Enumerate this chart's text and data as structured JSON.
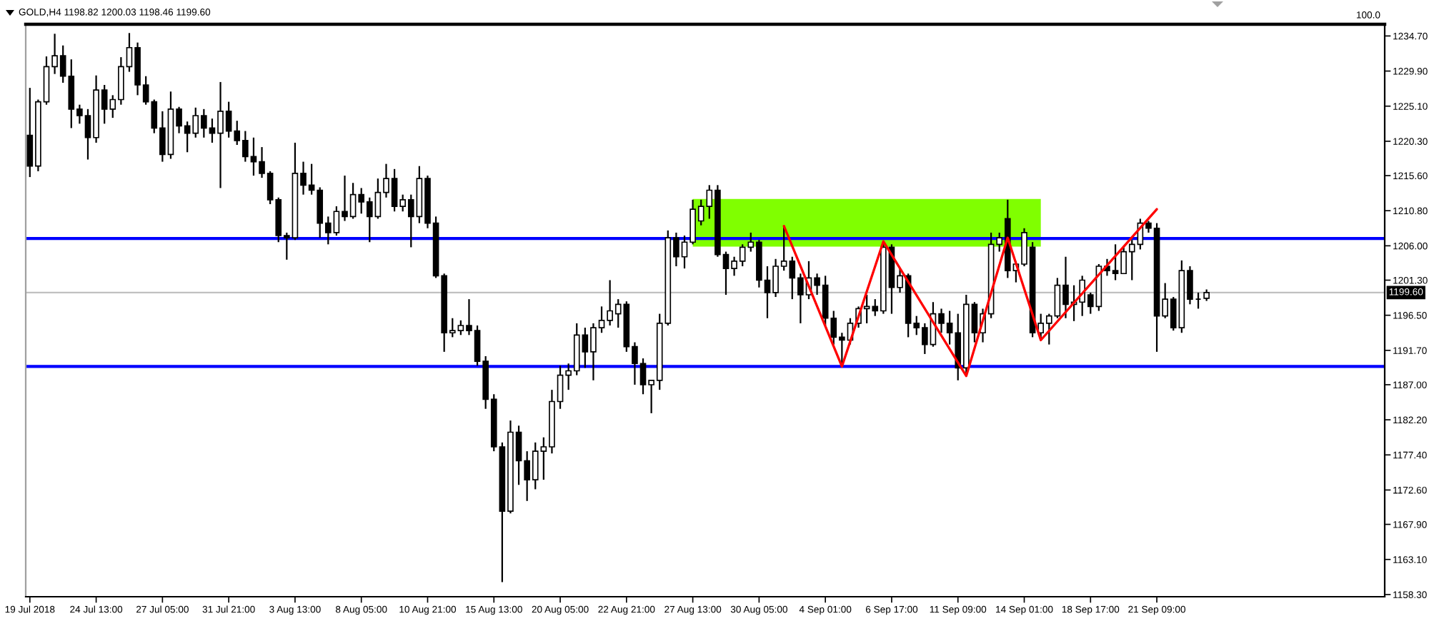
{
  "chart_data": {
    "type": "candlestick",
    "title": "GOLD,H4 1198.82 1200.03 1198.46 1199.60",
    "categories": [
      "19 Jul 2018",
      null,
      null,
      null,
      null,
      null,
      null,
      null,
      "24 Jul 13:00",
      null,
      null,
      null,
      null,
      null,
      null,
      null,
      "27 Jul 05:00",
      null,
      null,
      null,
      null,
      null,
      null,
      null,
      "31 Jul 21:00",
      null,
      null,
      null,
      null,
      null,
      null,
      null,
      "3 Aug 13:00",
      null,
      null,
      null,
      null,
      null,
      null,
      null,
      "8 Aug 05:00",
      null,
      null,
      null,
      null,
      null,
      null,
      null,
      "10 Aug 21:00",
      null,
      null,
      null,
      null,
      null,
      null,
      null,
      "15 Aug 13:00",
      null,
      null,
      null,
      null,
      null,
      null,
      null,
      "20 Aug 05:00",
      null,
      null,
      null,
      null,
      null,
      null,
      null,
      "22 Aug 21:00",
      null,
      null,
      null,
      null,
      null,
      null,
      null,
      "27 Aug 13:00",
      null,
      null,
      null,
      null,
      null,
      null,
      null,
      "30 Aug 05:00",
      null,
      null,
      null,
      null,
      null,
      null,
      null,
      "4 Sep 01:00",
      null,
      null,
      null,
      null,
      null,
      null,
      null,
      "6 Sep 17:00",
      null,
      null,
      null,
      null,
      null,
      null,
      null,
      "11 Sep 09:00",
      null,
      null,
      null,
      null,
      null,
      null,
      null,
      "14 Sep 01:00",
      null,
      null,
      null,
      null,
      null,
      null,
      null,
      "18 Sep 17:00",
      null,
      null,
      null,
      null,
      null,
      null,
      null,
      "21 Sep 09:00",
      null,
      null,
      null,
      null,
      null,
      null,
      null,
      null,
      null,
      null,
      null,
      null,
      null,
      null,
      null,
      null,
      null,
      null,
      null,
      null,
      null,
      null,
      null,
      null,
      null,
      null,
      null
    ],
    "ohlc": [
      [
        1221.1,
        1227.6,
        1215.4,
        1216.9
      ],
      [
        1216.9,
        1226.0,
        1216.2,
        1225.7
      ],
      [
        1225.7,
        1231.9,
        1225.3,
        1230.5
      ],
      [
        1230.5,
        1235.0,
        1229.5,
        1232.0
      ],
      [
        1232.0,
        1233.4,
        1228.3,
        1229.2
      ],
      [
        1229.2,
        1231.5,
        1222.1,
        1224.7
      ],
      [
        1224.7,
        1225.3,
        1222.7,
        1223.8
      ],
      [
        1223.8,
        1224.7,
        1217.8,
        1220.8
      ],
      [
        1220.8,
        1229.3,
        1220.1,
        1227.3
      ],
      [
        1227.3,
        1228.0,
        1222.7,
        1224.7
      ],
      [
        1224.7,
        1226.6,
        1223.5,
        1226.0
      ],
      [
        1226.0,
        1231.8,
        1225.3,
        1230.5
      ],
      [
        1230.5,
        1235.1,
        1229.8,
        1233.1
      ],
      [
        1233.1,
        1233.8,
        1226.6,
        1228.0
      ],
      [
        1228.0,
        1229.2,
        1225.3,
        1225.7
      ],
      [
        1225.7,
        1226.0,
        1221.4,
        1222.1
      ],
      [
        1222.1,
        1224.4,
        1217.5,
        1218.5
      ],
      [
        1218.5,
        1227.1,
        1217.9,
        1224.7
      ],
      [
        1224.7,
        1225.0,
        1221.4,
        1222.4
      ],
      [
        1222.4,
        1223.0,
        1218.8,
        1221.4
      ],
      [
        1221.4,
        1224.9,
        1220.8,
        1223.8
      ],
      [
        1223.8,
        1224.7,
        1220.8,
        1222.1
      ],
      [
        1222.1,
        1223.4,
        1220.1,
        1221.4
      ],
      [
        1221.4,
        1228.4,
        1213.9,
        1224.4
      ],
      [
        1224.4,
        1225.7,
        1220.8,
        1221.7
      ],
      [
        1221.7,
        1223.1,
        1219.8,
        1220.4
      ],
      [
        1220.4,
        1221.7,
        1217.5,
        1218.2
      ],
      [
        1218.2,
        1220.8,
        1215.6,
        1217.5
      ],
      [
        1217.5,
        1219.5,
        1215.3,
        1215.9
      ],
      [
        1215.9,
        1216.2,
        1211.7,
        1212.3
      ],
      [
        1212.3,
        1212.6,
        1206.5,
        1207.4
      ],
      [
        1207.4,
        1207.8,
        1204.1,
        1207.1
      ],
      [
        1207.1,
        1220.1,
        1206.8,
        1215.9
      ],
      [
        1215.9,
        1217.5,
        1213.0,
        1214.3
      ],
      [
        1214.3,
        1217.2,
        1213.0,
        1213.6
      ],
      [
        1213.6,
        1214.0,
        1207.1,
        1209.1
      ],
      [
        1209.1,
        1210.0,
        1206.2,
        1207.8
      ],
      [
        1207.8,
        1211.4,
        1207.4,
        1210.7
      ],
      [
        1210.7,
        1215.6,
        1209.4,
        1210.0
      ],
      [
        1210.0,
        1214.6,
        1209.7,
        1213.0
      ],
      [
        1213.0,
        1213.9,
        1210.4,
        1212.0
      ],
      [
        1212.0,
        1212.6,
        1206.5,
        1210.0
      ],
      [
        1210.0,
        1215.2,
        1209.7,
        1213.3
      ],
      [
        1213.3,
        1217.2,
        1212.6,
        1215.2
      ],
      [
        1215.2,
        1216.5,
        1210.7,
        1211.4
      ],
      [
        1211.4,
        1213.0,
        1210.7,
        1212.3
      ],
      [
        1212.3,
        1213.0,
        1205.8,
        1210.0
      ],
      [
        1210.0,
        1216.9,
        1209.1,
        1215.2
      ],
      [
        1215.2,
        1215.6,
        1208.4,
        1209.1
      ],
      [
        1209.1,
        1210.0,
        1201.6,
        1201.9
      ],
      [
        1201.9,
        1202.2,
        1191.5,
        1194.1
      ],
      [
        1194.1,
        1196.1,
        1193.5,
        1194.4
      ],
      [
        1194.4,
        1195.8,
        1193.8,
        1195.1
      ],
      [
        1195.1,
        1198.7,
        1193.8,
        1194.4
      ],
      [
        1194.4,
        1195.1,
        1189.6,
        1190.2
      ],
      [
        1190.2,
        1190.9,
        1183.7,
        1185.0
      ],
      [
        1185.0,
        1185.7,
        1177.9,
        1178.5
      ],
      [
        1178.5,
        1179.1,
        1160.0,
        1169.7
      ],
      [
        1169.7,
        1182.1,
        1169.4,
        1180.5
      ],
      [
        1180.5,
        1181.4,
        1173.3,
        1176.6
      ],
      [
        1176.6,
        1177.9,
        1171.1,
        1174.0
      ],
      [
        1174.0,
        1179.1,
        1172.7,
        1177.9
      ],
      [
        1177.9,
        1179.8,
        1174.0,
        1178.5
      ],
      [
        1178.5,
        1186.3,
        1177.6,
        1184.7
      ],
      [
        1184.7,
        1189.6,
        1183.7,
        1188.3
      ],
      [
        1188.3,
        1189.9,
        1186.3,
        1188.9
      ],
      [
        1188.9,
        1195.4,
        1188.3,
        1193.8
      ],
      [
        1193.8,
        1194.8,
        1189.3,
        1191.5
      ],
      [
        1191.5,
        1195.4,
        1187.6,
        1194.8
      ],
      [
        1194.8,
        1197.7,
        1194.1,
        1195.8
      ],
      [
        1195.8,
        1201.3,
        1195.1,
        1197.1
      ],
      [
        1196.7,
        1198.7,
        1194.8,
        1198.0
      ],
      [
        1198.0,
        1198.4,
        1191.5,
        1192.2
      ],
      [
        1192.2,
        1192.8,
        1187.0,
        1189.9
      ],
      [
        1189.9,
        1190.6,
        1185.7,
        1187.0
      ],
      [
        1187.0,
        1187.6,
        1183.1,
        1187.6
      ],
      [
        1187.6,
        1196.7,
        1186.3,
        1195.4
      ],
      [
        1195.4,
        1208.1,
        1195.1,
        1207.1
      ],
      [
        1207.1,
        1207.8,
        1203.2,
        1204.5
      ],
      [
        1204.5,
        1207.4,
        1202.9,
        1206.5
      ],
      [
        1206.5,
        1212.3,
        1206.2,
        1211.0
      ],
      [
        1209.4,
        1212.3,
        1208.8,
        1211.4
      ],
      [
        1211.4,
        1214.3,
        1209.7,
        1213.6
      ],
      [
        1213.6,
        1214.3,
        1204.5,
        1204.8
      ],
      [
        1204.8,
        1205.2,
        1199.3,
        1202.9
      ],
      [
        1202.9,
        1204.5,
        1201.9,
        1203.9
      ],
      [
        1203.9,
        1206.2,
        1203.2,
        1205.8
      ],
      [
        1205.8,
        1207.8,
        1205.2,
        1206.5
      ],
      [
        1206.5,
        1206.8,
        1200.3,
        1201.3
      ],
      [
        1201.3,
        1203.2,
        1196.1,
        1199.6
      ],
      [
        1199.6,
        1204.2,
        1199.0,
        1203.2
      ],
      [
        1203.2,
        1208.7,
        1202.6,
        1203.9
      ],
      [
        1203.9,
        1204.5,
        1198.7,
        1201.6
      ],
      [
        1201.6,
        1202.2,
        1195.4,
        1199.3
      ],
      [
        1199.3,
        1203.9,
        1198.7,
        1201.6
      ],
      [
        1201.6,
        1202.2,
        1199.3,
        1200.6
      ],
      [
        1200.6,
        1201.9,
        1195.1,
        1196.1
      ],
      [
        1196.1,
        1197.1,
        1192.5,
        1193.5
      ],
      [
        1193.5,
        1194.1,
        1189.6,
        1193.1
      ],
      [
        1193.1,
        1196.1,
        1192.5,
        1195.4
      ],
      [
        1195.4,
        1197.7,
        1194.8,
        1197.4
      ],
      [
        1197.4,
        1199.3,
        1195.4,
        1197.7
      ],
      [
        1197.7,
        1198.7,
        1196.4,
        1197.1
      ],
      [
        1197.1,
        1206.5,
        1196.7,
        1205.8
      ],
      [
        1205.8,
        1206.2,
        1196.7,
        1200.3
      ],
      [
        1200.3,
        1202.9,
        1199.6,
        1201.9
      ],
      [
        1201.9,
        1202.2,
        1193.5,
        1195.4
      ],
      [
        1195.4,
        1196.4,
        1193.8,
        1194.8
      ],
      [
        1194.8,
        1195.4,
        1191.2,
        1192.5
      ],
      [
        1192.5,
        1198.3,
        1192.2,
        1196.7
      ],
      [
        1196.7,
        1197.4,
        1194.1,
        1195.4
      ],
      [
        1195.4,
        1197.1,
        1192.5,
        1194.1
      ],
      [
        1194.1,
        1196.7,
        1187.6,
        1189.3
      ],
      [
        1189.3,
        1199.3,
        1188.6,
        1198.0
      ],
      [
        1198.0,
        1198.3,
        1192.8,
        1194.1
      ],
      [
        1194.1,
        1197.4,
        1192.8,
        1196.7
      ],
      [
        1196.7,
        1207.8,
        1196.1,
        1206.2
      ],
      [
        1206.2,
        1207.8,
        1205.2,
        1207.1
      ],
      [
        1209.7,
        1212.3,
        1201.6,
        1202.6
      ],
      [
        1202.6,
        1203.9,
        1201.0,
        1203.5
      ],
      [
        1203.5,
        1208.4,
        1203.2,
        1207.8
      ],
      [
        1205.8,
        1206.5,
        1193.5,
        1194.1
      ],
      [
        1194.1,
        1196.7,
        1193.1,
        1195.4
      ],
      [
        1195.4,
        1196.7,
        1192.5,
        1196.4
      ],
      [
        1196.4,
        1201.6,
        1196.1,
        1200.6
      ],
      [
        1200.6,
        1204.5,
        1196.1,
        1198.0
      ],
      [
        1198.0,
        1200.6,
        1195.7,
        1198.3
      ],
      [
        1198.3,
        1201.9,
        1196.4,
        1201.3
      ],
      [
        1199.3,
        1199.6,
        1196.7,
        1197.7
      ],
      [
        1197.7,
        1203.5,
        1197.1,
        1203.2
      ],
      [
        1203.2,
        1204.2,
        1201.9,
        1202.6
      ],
      [
        1202.6,
        1206.2,
        1201.3,
        1202.2
      ],
      [
        1202.2,
        1205.8,
        1202.2,
        1205.2
      ],
      [
        1205.2,
        1206.8,
        1201.3,
        1206.2
      ],
      [
        1206.2,
        1209.7,
        1205.5,
        1209.1
      ],
      [
        1209.1,
        1209.4,
        1207.8,
        1208.4
      ],
      [
        1208.4,
        1209.1,
        1191.5,
        1196.4
      ],
      [
        1196.4,
        1200.9,
        1196.1,
        1198.7
      ],
      [
        1198.7,
        1199.0,
        1194.4,
        1194.8
      ],
      [
        1194.8,
        1204.0,
        1194.1,
        1202.6
      ],
      [
        1202.6,
        1203.2,
        1198.0,
        1198.7
      ],
      [
        1198.7,
        1199.6,
        1197.4,
        1198.7
      ],
      [
        1198.82,
        1200.03,
        1198.46,
        1199.6
      ],
      null,
      null,
      null,
      null,
      null,
      null,
      null,
      null,
      null,
      null,
      null,
      null,
      null,
      null,
      null,
      null,
      null,
      null,
      null,
      null,
      null
    ],
    "series": [
      {
        "type": "area",
        "color": "#80ff00",
        "values": [
          null,
          null,
          null,
          null,
          null,
          null,
          null,
          null,
          null,
          null,
          null,
          null,
          null,
          null,
          null,
          null,
          null,
          null,
          null,
          null,
          null,
          null,
          null,
          null,
          null,
          null,
          null,
          null,
          null,
          null,
          null,
          null,
          null,
          null,
          null,
          null,
          null,
          null,
          null,
          null,
          null,
          null,
          null,
          null,
          null,
          null,
          null,
          null,
          null,
          null,
          null,
          null,
          null,
          null,
          null,
          null,
          null,
          null,
          null,
          null,
          null,
          null,
          null,
          null,
          null,
          null,
          null,
          null,
          null,
          null,
          null,
          null,
          null,
          null,
          null,
          null,
          null,
          null,
          null,
          null,
          null,
          null,
          null,
          null,
          null,
          null,
          null,
          null,
          null,
          null,
          null,
          null,
          null,
          null,
          null,
          null,
          null,
          null,
          null,
          null,
          null,
          null,
          null,
          null,
          null,
          null,
          null,
          null,
          null,
          null,
          null,
          null,
          null,
          null,
          null,
          null,
          null,
          null,
          null,
          null,
          null,
          null,
          null,
          null,
          null,
          null,
          null,
          null,
          null,
          null,
          null,
          null,
          null,
          null,
          null,
          null,
          null,
          null,
          null,
          null,
          null,
          null,
          null,
          null,
          null,
          null,
          null,
          null,
          null,
          null,
          null,
          null,
          null,
          null,
          null,
          null,
          null,
          null,
          null,
          null,
          null,
          null,
          null,
          null
        ],
        "lower": [
          null,
          null,
          null,
          null,
          null,
          null,
          null,
          null,
          null,
          null,
          null,
          null,
          null,
          null,
          null,
          null,
          null,
          null,
          null,
          null,
          null,
          null,
          null,
          null,
          null,
          null,
          null,
          null,
          null,
          null,
          null,
          null,
          null,
          null,
          null,
          null,
          null,
          null,
          null,
          null,
          null,
          null,
          null,
          null,
          null,
          null,
          null,
          null,
          null,
          null,
          null,
          null,
          null,
          null,
          null,
          null,
          null,
          null,
          null,
          null,
          null,
          null,
          null,
          null,
          null,
          null,
          null,
          null,
          null,
          null,
          null,
          null,
          null,
          null,
          null,
          null,
          null,
          null,
          null,
          null,
          1205.9,
          1205.9,
          1205.9,
          1205.9,
          1205.9,
          1205.9,
          1205.9,
          1205.9,
          1205.9,
          1205.9,
          1205.9,
          1205.9,
          1205.9,
          1205.9,
          1205.9,
          1205.9,
          1205.9,
          1205.9,
          1205.9,
          1205.9,
          1205.9,
          1205.9,
          1205.9,
          1205.9,
          1205.9,
          1205.9,
          1205.9,
          1205.9,
          1205.9,
          1205.9,
          1205.9,
          1205.9,
          1205.9,
          1205.9,
          1205.9,
          1205.9,
          1205.9,
          1205.9,
          1205.9,
          1205.9,
          1205.9,
          1205.9,
          1205.9,
          null,
          null,
          null,
          null,
          null,
          null,
          null,
          null,
          null,
          null,
          null,
          null,
          null,
          null,
          null,
          null,
          null,
          null,
          null,
          null,
          null,
          null,
          null,
          null,
          null,
          null,
          null,
          null,
          null,
          null,
          null,
          null,
          null,
          null,
          null,
          null,
          null,
          null,
          null,
          null,
          null
        ],
        "upper": [
          null,
          null,
          null,
          null,
          null,
          null,
          null,
          null,
          null,
          null,
          null,
          null,
          null,
          null,
          null,
          null,
          null,
          null,
          null,
          null,
          null,
          null,
          null,
          null,
          null,
          null,
          null,
          null,
          null,
          null,
          null,
          null,
          null,
          null,
          null,
          null,
          null,
          null,
          null,
          null,
          null,
          null,
          null,
          null,
          null,
          null,
          null,
          null,
          null,
          null,
          null,
          null,
          null,
          null,
          null,
          null,
          null,
          null,
          null,
          null,
          null,
          null,
          null,
          null,
          null,
          null,
          null,
          null,
          null,
          null,
          null,
          null,
          null,
          null,
          null,
          null,
          null,
          null,
          null,
          null,
          1212.4,
          1212.4,
          1212.4,
          1212.4,
          1212.4,
          1212.4,
          1212.4,
          1212.4,
          1212.4,
          1212.4,
          1212.4,
          1212.4,
          1212.4,
          1212.4,
          1212.4,
          1212.4,
          1212.4,
          1212.4,
          1212.4,
          1212.4,
          1212.4,
          1212.4,
          1212.4,
          1212.4,
          1212.4,
          1212.4,
          1212.4,
          1212.4,
          1212.4,
          1212.4,
          1212.4,
          1212.4,
          1212.4,
          1212.4,
          1212.4,
          1212.4,
          1212.4,
          1212.4,
          1212.4,
          1212.4,
          1212.4,
          1212.4,
          1212.4,
          null,
          null,
          null,
          null,
          null,
          null,
          null,
          null,
          null,
          null,
          null,
          null,
          null,
          null,
          null,
          null,
          null,
          null,
          null,
          null,
          null,
          null,
          null,
          null,
          null,
          null,
          null,
          null,
          null,
          null,
          null,
          null,
          null,
          null,
          null,
          null,
          null,
          null,
          null,
          null,
          null
        ]
      },
      {
        "type": "line",
        "color": "#ff0000",
        "values": [
          null,
          null,
          null,
          null,
          null,
          null,
          null,
          null,
          null,
          null,
          null,
          null,
          null,
          null,
          null,
          null,
          null,
          null,
          null,
          null,
          null,
          null,
          null,
          null,
          null,
          null,
          null,
          null,
          null,
          null,
          null,
          null,
          null,
          null,
          null,
          null,
          null,
          null,
          null,
          null,
          null,
          null,
          null,
          null,
          null,
          null,
          null,
          null,
          null,
          null,
          null,
          null,
          null,
          null,
          null,
          null,
          null,
          null,
          null,
          null,
          null,
          null,
          null,
          null,
          null,
          null,
          null,
          null,
          null,
          null,
          null,
          null,
          null,
          null,
          null,
          null,
          null,
          null,
          null,
          null,
          null,
          null,
          null,
          null,
          null,
          null,
          null,
          null,
          null,
          null,
          null,
          1208.7,
          null,
          null,
          null,
          null,
          null,
          null,
          1189.5,
          null,
          null,
          null,
          null,
          1206.6,
          null,
          null,
          null,
          null,
          null,
          null,
          null,
          null,
          null,
          1188.2,
          null,
          null,
          null,
          null,
          1207.1,
          null,
          null,
          null,
          1193.1,
          null,
          null,
          null,
          null,
          null,
          null,
          null,
          null,
          null,
          null,
          null,
          null,
          null,
          1211.0,
          null,
          null,
          null,
          null,
          null,
          null,
          null,
          null,
          null,
          null,
          null,
          null,
          null,
          null,
          null,
          null,
          null,
          null,
          null,
          null,
          null,
          null,
          null,
          null,
          null,
          null,
          null
        ]
      }
    ],
    "ref_lines": [
      {
        "axis": "y",
        "value": 1207.0,
        "color": "#0000ff"
      },
      {
        "axis": "y",
        "value": 1189.5,
        "color": "#0000ff"
      },
      {
        "axis": "y",
        "value": 1199.6,
        "label": "1199.60",
        "color": "#c0c0c0"
      }
    ],
    "annotations": [
      "100.0"
    ],
    "ylim": [
      1158.0,
      1236.3
    ],
    "yticks": [
      {
        "value": 1234.7,
        "label": "1234.70"
      },
      {
        "value": 1229.9,
        "label": "1229.90"
      },
      {
        "value": 1225.1,
        "label": "1225.10"
      },
      {
        "value": 1220.3,
        "label": "1220.30"
      },
      {
        "value": 1215.6,
        "label": "1215.60"
      },
      {
        "value": 1210.8,
        "label": "1210.80"
      },
      {
        "value": 1206.0,
        "label": "1206.00"
      },
      {
        "value": 1201.3,
        "label": "1201.30"
      },
      {
        "value": 1196.5,
        "label": "1196.50"
      },
      {
        "value": 1191.7,
        "label": "1191.70"
      },
      {
        "value": 1187.0,
        "label": "1187.00"
      },
      {
        "value": 1182.2,
        "label": "1182.20"
      },
      {
        "value": 1177.4,
        "label": "1177.40"
      },
      {
        "value": 1172.6,
        "label": "1172.60"
      },
      {
        "value": 1167.9,
        "label": "1167.90"
      },
      {
        "value": 1163.1,
        "label": "1163.10"
      },
      {
        "value": 1158.3,
        "label": "1158.30"
      }
    ]
  }
}
